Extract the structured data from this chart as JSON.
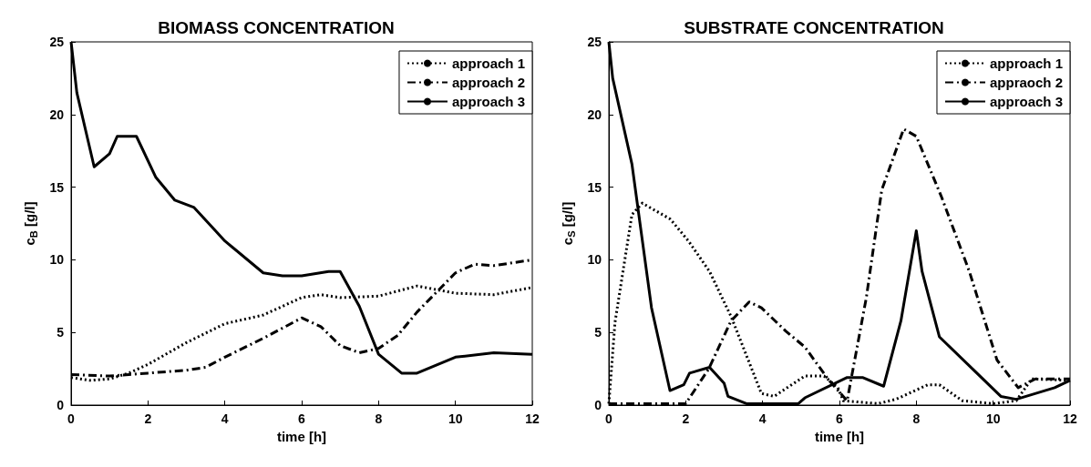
{
  "chart_data": [
    {
      "type": "line",
      "title": "BIOMASS CONCENTRATION",
      "xlabel": "time [h]",
      "ylabel": "c$_{B}$ [g/l]",
      "xlim": [
        0,
        12
      ],
      "xticks": [
        0,
        2,
        4,
        6,
        8,
        10,
        12
      ],
      "ylim": [
        0,
        25
      ],
      "yticks": [
        0,
        5,
        10,
        15,
        20,
        25
      ],
      "grid": false,
      "legend": "top right",
      "marker": "none",
      "series": [
        {
          "name": "approach 1",
          "color": "#000000",
          "line_style": "dotted",
          "x": [
            0,
            0.5,
            1,
            1.5,
            2,
            3,
            4,
            5,
            6,
            6.5,
            7,
            8,
            9,
            10,
            11,
            12
          ],
          "values": [
            1.9,
            1.7,
            1.8,
            2.2,
            2.8,
            4.3,
            5.6,
            6.2,
            7.4,
            7.6,
            7.4,
            7.5,
            8.2,
            7.7,
            7.6,
            8.1
          ]
        },
        {
          "name": "approach 2",
          "color": "#000000",
          "line_style": "dashdot",
          "x": [
            0,
            1,
            1.5,
            2,
            3,
            3.5,
            4,
            5,
            6,
            6.5,
            7,
            7.5,
            8,
            8.5,
            9,
            10,
            10.5,
            11,
            12
          ],
          "values": [
            2.1,
            2.0,
            2.1,
            2.2,
            2.4,
            2.6,
            3.3,
            4.6,
            6.0,
            5.4,
            4.1,
            3.6,
            3.9,
            4.8,
            6.4,
            9.1,
            9.7,
            9.6,
            10.0
          ]
        },
        {
          "name": "approach 3",
          "color": "#000000",
          "line_style": "solid",
          "x": [
            0,
            0.15,
            0.6,
            1,
            1.2,
            1.7,
            2.2,
            2.7,
            3.2,
            4,
            5,
            5.5,
            6,
            6.7,
            7,
            7.5,
            8,
            8.6,
            9,
            10,
            11,
            12
          ],
          "values": [
            25,
            21.5,
            16.4,
            17.3,
            18.5,
            18.5,
            15.7,
            14.1,
            13.6,
            11.3,
            9.1,
            8.9,
            8.9,
            9.2,
            9.2,
            6.8,
            3.5,
            2.2,
            2.2,
            3.3,
            3.6,
            3.5
          ]
        }
      ]
    },
    {
      "type": "line",
      "title": "SUBSTRATE CONCENTRATION",
      "xlabel": "time [h]",
      "ylabel": "c$_{S}$ [g/l]",
      "xlim": [
        0,
        12
      ],
      "xticks": [
        0,
        2,
        4,
        6,
        8,
        10,
        12
      ],
      "ylim": [
        0,
        25
      ],
      "yticks": [
        0,
        5,
        10,
        15,
        20,
        25
      ],
      "grid": false,
      "legend": "top right",
      "marker": "none",
      "series": [
        {
          "name": "approach 1",
          "color": "#000000",
          "line_style": "dotted",
          "x": [
            0,
            0.16,
            0.6,
            0.87,
            1.6,
            2.07,
            2.62,
            3.18,
            3.97,
            4.3,
            5.1,
            5.6,
            5.96,
            6.1,
            7,
            7.47,
            8.3,
            8.6,
            9.2,
            10,
            10.6,
            11,
            12
          ],
          "values": [
            0.1,
            5.7,
            13.1,
            13.9,
            12.8,
            11.3,
            9.2,
            6.1,
            0.8,
            0.6,
            2.0,
            2.0,
            1.2,
            0.3,
            0.1,
            0.4,
            1.4,
            1.4,
            0.3,
            0.1,
            0.3,
            1.8,
            1.7
          ]
        },
        {
          "name": "appraoch 2",
          "color": "#000000",
          "line_style": "dashdot",
          "x": [
            0,
            2,
            2.6,
            3.18,
            3.65,
            3.97,
            4.6,
            5.1,
            5.7,
            6.2,
            6.7,
            7.1,
            7.67,
            8,
            8.66,
            9.38,
            10.1,
            10.65,
            11.1,
            12
          ],
          "values": [
            0.1,
            0.1,
            2.5,
            5.8,
            7.1,
            6.7,
            5.1,
            4.0,
            1.8,
            0.3,
            7.4,
            14.8,
            19.0,
            18.5,
            14.3,
            9.2,
            3.1,
            1.2,
            1.8,
            1.8
          ]
        },
        {
          "name": "approach 3",
          "color": "#000000",
          "line_style": "solid",
          "x": [
            0,
            0.1,
            0.6,
            1.11,
            1.59,
            1.95,
            2.1,
            2.62,
            3.0,
            3.1,
            3.58,
            4.93,
            5.1,
            6.2,
            6.6,
            7.15,
            7.6,
            8,
            8.15,
            8.6,
            9.46,
            10.2,
            10.6,
            11.6,
            12
          ],
          "values": [
            25,
            22.5,
            16.6,
            6.7,
            1.0,
            1.4,
            2.2,
            2.6,
            1.5,
            0.6,
            0.1,
            0.1,
            0.5,
            1.9,
            1.9,
            1.3,
            5.8,
            12.0,
            9.2,
            4.7,
            2.5,
            0.6,
            0.4,
            1.2,
            1.7
          ]
        }
      ]
    }
  ]
}
